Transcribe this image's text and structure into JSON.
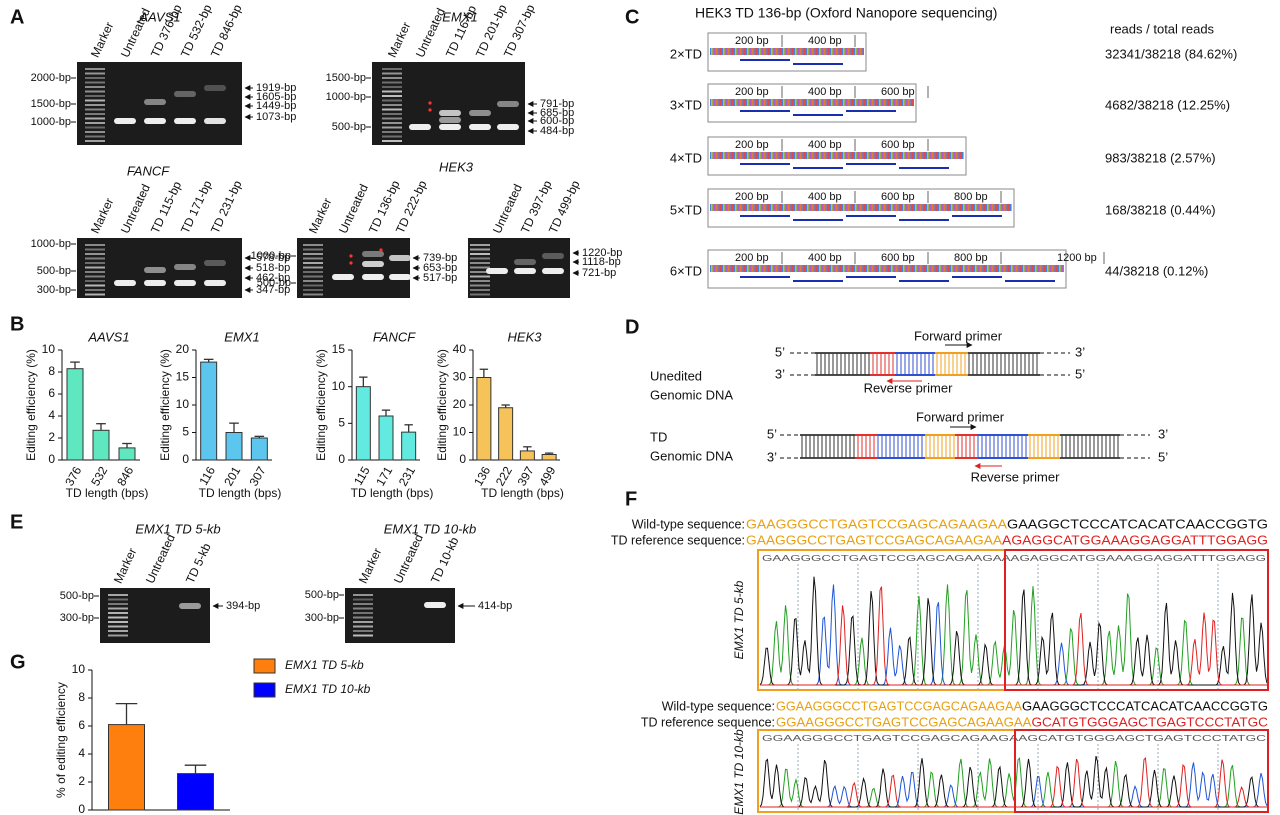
{
  "panel_labels": [
    "A",
    "B",
    "C",
    "D",
    "E",
    "F",
    "G"
  ],
  "gels": {
    "A": [
      {
        "title": "AAVS1",
        "lanes": [
          "Marker",
          "Untreated",
          "TD 376-bp",
          "TD 532-bp",
          "TD 846-bp"
        ],
        "markers": [
          "2000-bp",
          "1500-bp",
          "1000-bp"
        ],
        "sizes": [
          "1919-bp",
          "1605-bp",
          "1449-bp",
          "1073-bp"
        ]
      },
      {
        "title": "EMX1",
        "lanes": [
          "Marker",
          "Untreated",
          "TD 116-bp",
          "TD 201-bp",
          "TD 307-bp"
        ],
        "markers": [
          "1500-bp",
          "1000-bp",
          "500-bp"
        ],
        "sizes": [
          "791-bp",
          "685-bp",
          "600-bp",
          "484-bp"
        ]
      },
      {
        "title": "FANCF",
        "lanes": [
          "Marker",
          "Untreated",
          "TD 115-bp",
          "TD 171-bp",
          "TD 231-bp"
        ],
        "markers": [
          "1000-bp",
          "500-bp",
          "300-bp"
        ],
        "sizes": [
          "578-bp",
          "518-bp",
          "462-bp",
          "347-bp"
        ]
      },
      {
        "title": "HEK3",
        "lanes": [
          "Marker",
          "Untreated",
          "TD 136-bp",
          "TD 222-bp"
        ],
        "markers": [
          "1000-bp",
          "500-bp"
        ],
        "sizes": [
          "739-bp",
          "653-bp",
          "517-bp"
        ]
      },
      {
        "lanes": [
          "Untreated",
          "TD 397-bp",
          "TD 499-bp"
        ],
        "markers": [],
        "sizes": [
          "1220-bp",
          "1118-bp",
          "721-bp"
        ]
      }
    ],
    "E": [
      {
        "title": "EMX1 TD 5-kb",
        "lanes": [
          "Marker",
          "Untreated",
          "TD 5-kb"
        ],
        "markers": [
          "500-bp",
          "300-bp"
        ],
        "sizes": [
          "394-bp"
        ]
      },
      {
        "title": "EMX1 TD 10-kb",
        "lanes": [
          "Marker",
          "Untreated",
          "TD 10-kb"
        ],
        "markers": [
          "500-bp",
          "300-bp"
        ],
        "sizes": [
          "414-bp"
        ]
      }
    ]
  },
  "chart_data": [
    {
      "type": "bar",
      "title": "AAVS1",
      "y_label": "Editing efficiency (%)",
      "x_label": "TD length (bps)",
      "categories": [
        "376",
        "532",
        "846"
      ],
      "values": [
        8.3,
        2.7,
        1.1
      ],
      "errors": [
        0.6,
        0.6,
        0.4
      ],
      "color": "#5fe8bf",
      "ylim": [
        0,
        10
      ],
      "yticks": [
        0,
        2,
        4,
        6,
        8,
        10
      ]
    },
    {
      "type": "bar",
      "title": "EMX1",
      "y_label": "Editing efficiency (%)",
      "x_label": "TD length (bps)",
      "categories": [
        "116",
        "201",
        "307"
      ],
      "values": [
        17.8,
        5,
        4
      ],
      "errors": [
        0.5,
        1.7,
        0.3
      ],
      "color": "#5cc6ee",
      "ylim": [
        0,
        20
      ],
      "yticks": [
        0,
        5,
        10,
        15,
        20
      ]
    },
    {
      "type": "bar",
      "title": "FANCF",
      "y_label": "Editing efficiency (%)",
      "x_label": "TD length (bps)",
      "categories": [
        "115",
        "171",
        "231"
      ],
      "values": [
        10,
        6,
        3.8
      ],
      "errors": [
        1.3,
        0.8,
        1.0
      ],
      "color": "#62eae0",
      "ylim": [
        0,
        15
      ],
      "yticks": [
        0,
        5,
        10,
        15
      ]
    },
    {
      "type": "bar",
      "title": "HEK3",
      "y_label": "Editing efficiency (%)",
      "x_label": "TD length (bps)",
      "categories": [
        "136",
        "222",
        "397",
        "499"
      ],
      "values": [
        30,
        19,
        3.3,
        2
      ],
      "errors": [
        3,
        1,
        1.5,
        0.5
      ],
      "color": "#f6c35b",
      "ylim": [
        0,
        40
      ],
      "yticks": [
        0,
        10,
        20,
        30,
        40
      ]
    },
    {
      "type": "bar",
      "y_label": "% of editing efficiency",
      "legend": "right",
      "ylim": [
        0,
        10
      ],
      "yticks": [
        0,
        2,
        4,
        6,
        8,
        10
      ],
      "series": [
        {
          "name": "EMX1 TD 5-kb",
          "color": "#ff7f0e",
          "values": [
            6.1
          ],
          "errors": [
            1.5
          ]
        },
        {
          "name": "EMX1 TD 10-kb",
          "color": "#0000ff",
          "values": [
            2.6
          ],
          "errors": [
            0.6
          ]
        }
      ]
    }
  ],
  "nanopore": {
    "title": "HEK3 TD 136-bp (Oxford Nanopore sequencing)",
    "header": "reads / total reads",
    "rows": [
      {
        "copies": "2×TD",
        "ruler": [
          "200 bp",
          "400 bp"
        ],
        "reads": "32341/38218 (84.62%)"
      },
      {
        "copies": "3×TD",
        "ruler": [
          "200 bp",
          "400 bp",
          "600 bp"
        ],
        "reads": "4682/38218 (12.25%)"
      },
      {
        "copies": "4×TD",
        "ruler": [
          "200 bp",
          "400 bp",
          "600 bp"
        ],
        "reads": "983/38218 (2.57%)"
      },
      {
        "copies": "5×TD",
        "ruler": [
          "200 bp",
          "400 bp",
          "600 bp",
          "800 bp"
        ],
        "reads": "168/38218 (0.44%)"
      },
      {
        "copies": "6×TD",
        "ruler": [
          "200 bp",
          "400 bp",
          "600 bp",
          "800 bp",
          "1200 bp"
        ],
        "reads": "44/38218 (0.12%)"
      }
    ]
  },
  "primer_diagrams": [
    {
      "label": [
        "Unedited",
        "Genomic DNA"
      ],
      "forward_primer": "Forward primer",
      "reverse_primer": "Reverse primer",
      "ends": [
        "5’",
        "3’",
        "3’",
        "5’"
      ]
    },
    {
      "label": [
        "TD",
        "Genomic DNA"
      ],
      "forward_primer": "Forward primer",
      "reverse_primer": "Reverse primer",
      "ends": [
        "5’",
        "3’",
        "3’",
        "5’"
      ]
    }
  ],
  "sequencing": [
    {
      "wild_type_label": "Wild-type sequence:",
      "wild_type_sequence": [
        "GAAGGGCCTGAGTCCGAGCAGAAGAA",
        "GAAGGCTCCCATCACATCAACCGGTG"
      ],
      "td_label": "TD reference sequence:",
      "td_sequence": [
        "GAAGGGCCTGAGTCCGAGCAGAAGAA",
        "AGAGGCATGGAAAGGAGGATTTGGAGG"
      ],
      "sample": "EMX1 TD 5-kb",
      "trace_bases": "GAAGGGCCTGAGTCCGAGCAGAAGAAAGAGGCATGGAAAGGAGGATTTGGAGG"
    },
    {
      "wild_type_label": "Wild-type sequence:",
      "wild_type_sequence": [
        "GGAAGGGCCTGAGTCCGAGCAGAAGAA",
        "GAAGGGCTCCCATCACATCAACCGGTG"
      ],
      "td_label": "TD reference sequence:",
      "td_sequence": [
        "GGAAGGGCCTGAGTCCGAGCAGAAGAA",
        "GCATGTGGGAGCTGAGTCCCTATGC"
      ],
      "sample": "EMX1 TD 10-kb",
      "trace_bases": "GGAAGGGCCTGAGTCCGAGCAGAAGAAGCATGTGGGAGCTGAGTCCCTATGC"
    }
  ]
}
